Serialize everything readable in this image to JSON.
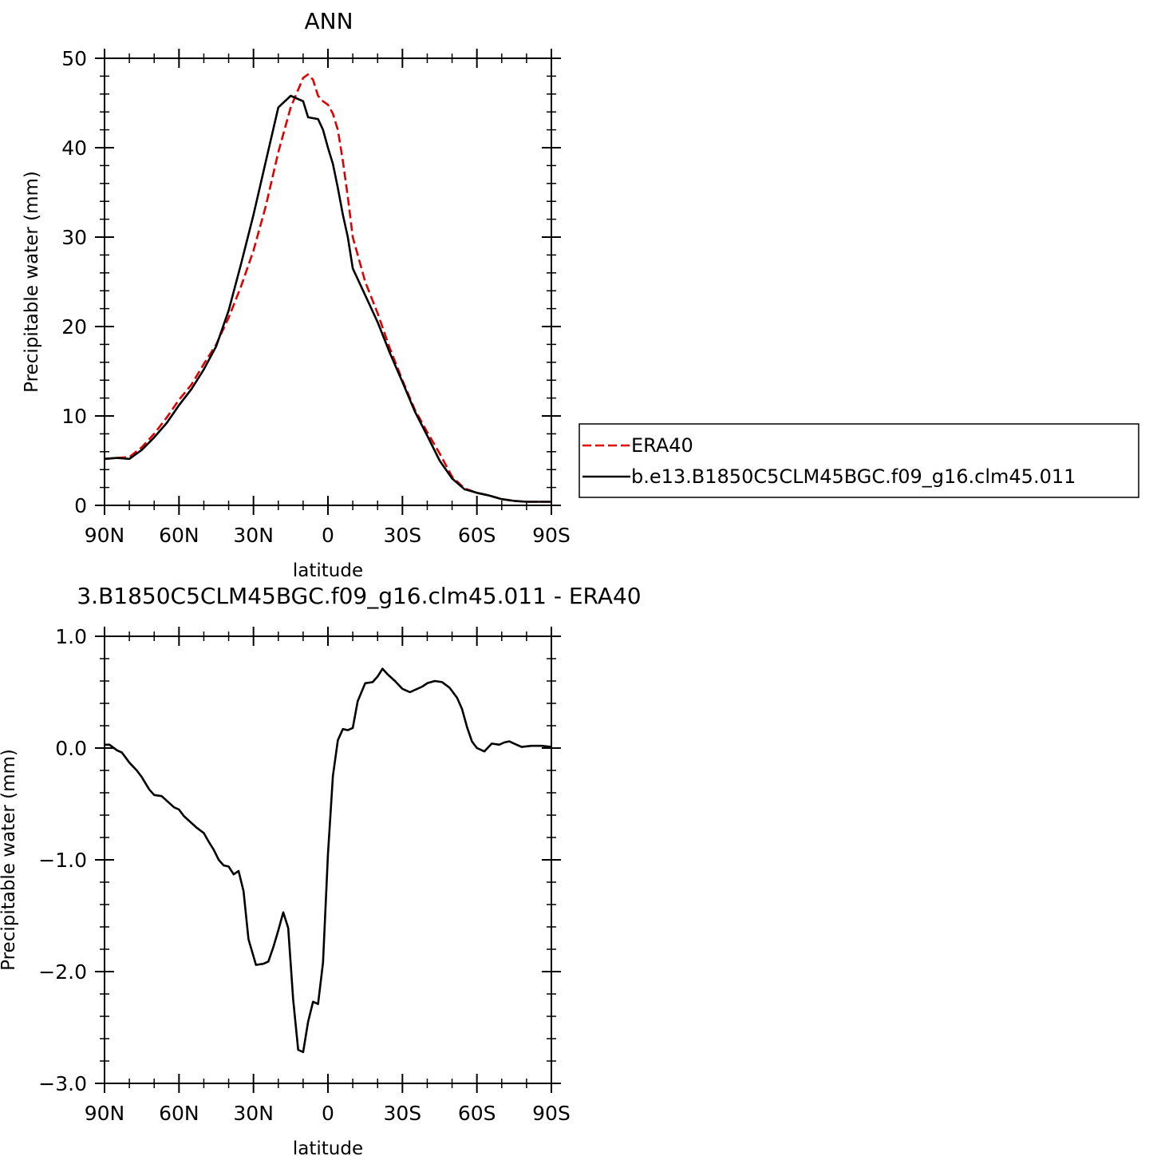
{
  "chart_data": [
    {
      "type": "line",
      "title": "ANN",
      "xlabel": "latitude",
      "ylabel": "Precipitable water (mm)",
      "xlim": [
        90,
        -90
      ],
      "ylim": [
        0,
        50
      ],
      "x_ticks": [
        90,
        60,
        30,
        0,
        -30,
        -60,
        -90
      ],
      "x_tick_labels": [
        "90N",
        "60N",
        "30N",
        "0",
        "30S",
        "60S",
        "90S"
      ],
      "y_ticks": [
        0,
        10,
        20,
        30,
        40,
        50
      ],
      "y_tick_labels": [
        "0",
        "10",
        "20",
        "30",
        "40",
        "50"
      ],
      "legend_position": "right",
      "series": [
        {
          "name": "ERA40",
          "color": "#e00000",
          "dash": "dashed",
          "x": [
            90,
            85,
            80,
            75,
            70,
            65,
            60,
            55,
            50,
            45,
            40,
            35,
            30,
            25,
            20,
            15,
            10,
            8,
            6,
            4,
            2,
            0,
            -2,
            -4,
            -6,
            -8,
            -10,
            -15,
            -20,
            -25,
            -30,
            -35,
            -40,
            -45,
            -50,
            -55,
            -60,
            -65,
            -70,
            -75,
            -80,
            -85,
            -90
          ],
          "y": [
            5.2,
            5.3,
            5.4,
            6.5,
            8.0,
            9.8,
            11.8,
            13.5,
            15.8,
            18.0,
            21.0,
            24.5,
            28.5,
            33.5,
            39.5,
            44.5,
            47.8,
            48.2,
            47.6,
            45.8,
            45.2,
            44.8,
            43.8,
            42.0,
            38.5,
            34.5,
            30.0,
            25.0,
            21.5,
            17.5,
            14.0,
            10.7,
            8.2,
            5.8,
            3.2,
            1.9,
            1.4,
            1.1,
            0.7,
            0.5,
            0.4,
            0.4,
            0.4
          ],
          "note_x": "degrees latitude, positive = N"
        },
        {
          "name": "b.e13.B1850C5CLM45BGC.f09_g16.clm45.011",
          "color": "#000000",
          "dash": "solid",
          "x": [
            90,
            85,
            80,
            75,
            70,
            65,
            60,
            55,
            50,
            45,
            40,
            35,
            30,
            25,
            20,
            15,
            10,
            8,
            6,
            4,
            2,
            0,
            -2,
            -4,
            -6,
            -8,
            -10,
            -15,
            -20,
            -25,
            -30,
            -35,
            -40,
            -45,
            -50,
            -55,
            -60,
            -65,
            -70,
            -75,
            -80,
            -85,
            -90
          ],
          "y": [
            5.2,
            5.3,
            5.2,
            6.2,
            7.6,
            9.2,
            11.2,
            13.0,
            15.2,
            17.8,
            21.8,
            27.0,
            32.5,
            38.5,
            44.5,
            45.8,
            45.2,
            43.4,
            43.3,
            43.2,
            42.0,
            40.0,
            38.2,
            35.5,
            32.5,
            30.0,
            26.5,
            23.5,
            20.5,
            17.0,
            13.8,
            10.5,
            7.8,
            5.0,
            3.0,
            1.8,
            1.4,
            1.1,
            0.7,
            0.5,
            0.4,
            0.4,
            0.4
          ]
        }
      ]
    },
    {
      "type": "line",
      "title": "3.B1850C5CLM45BGC.f09_g16.clm45.011  -  ERA40",
      "xlabel": "latitude",
      "ylabel": "Precipitable water (mm)",
      "xlim": [
        90,
        -90
      ],
      "ylim": [
        -3.0,
        1.0
      ],
      "x_ticks": [
        90,
        60,
        30,
        0,
        -30,
        -60,
        -90
      ],
      "x_tick_labels": [
        "90N",
        "60N",
        "30N",
        "0",
        "30S",
        "60S",
        "90S"
      ],
      "y_ticks": [
        1.0,
        0.0,
        -1.0,
        -2.0,
        -3.0
      ],
      "y_tick_labels": [
        "1.0",
        "0.0",
        "-1.0",
        "-2.0",
        "-3.0"
      ],
      "series": [
        {
          "color": "#000000",
          "dash": "solid",
          "x": [
            90,
            88,
            85,
            83,
            80,
            77,
            75,
            72,
            70,
            67,
            65,
            62,
            60,
            58,
            56,
            53,
            50,
            48,
            46,
            44,
            42,
            40,
            38,
            36,
            34,
            32,
            29,
            26,
            24,
            22,
            20,
            18,
            16,
            14,
            12,
            10,
            8,
            6,
            4,
            2,
            0,
            -2,
            -4,
            -6,
            -8,
            -10,
            -12,
            -15,
            -18,
            -20,
            -22,
            -24,
            -27,
            -30,
            -33,
            -36,
            -38,
            -40,
            -43,
            -46,
            -49,
            -52,
            -54,
            -56,
            -58,
            -60,
            -63,
            -66,
            -69,
            -71,
            -73,
            -75,
            -78,
            -82,
            -86,
            -90
          ],
          "y": [
            0.03,
            0.03,
            -0.02,
            -0.04,
            -0.13,
            -0.2,
            -0.26,
            -0.37,
            -0.42,
            -0.43,
            -0.47,
            -0.53,
            -0.55,
            -0.61,
            -0.65,
            -0.71,
            -0.76,
            -0.84,
            -0.91,
            -1.0,
            -1.05,
            -1.06,
            -1.13,
            -1.1,
            -1.28,
            -1.71,
            -1.94,
            -1.93,
            -1.91,
            -1.78,
            -1.63,
            -1.47,
            -1.61,
            -2.25,
            -2.7,
            -2.72,
            -2.45,
            -2.27,
            -2.29,
            -1.92,
            -0.95,
            -0.25,
            0.07,
            0.17,
            0.16,
            0.18,
            0.42,
            0.58,
            0.59,
            0.64,
            0.71,
            0.66,
            0.6,
            0.53,
            0.5,
            0.53,
            0.55,
            0.58,
            0.6,
            0.59,
            0.54,
            0.45,
            0.35,
            0.19,
            0.06,
            0.0,
            -0.03,
            0.04,
            0.03,
            0.05,
            0.06,
            0.04,
            0.01,
            0.02,
            0.02,
            0.01
          ]
        }
      ]
    }
  ],
  "legend": {
    "entries": [
      "ERA40",
      "b.e13.B1850C5CLM45BGC.f09_g16.clm45.011"
    ]
  }
}
